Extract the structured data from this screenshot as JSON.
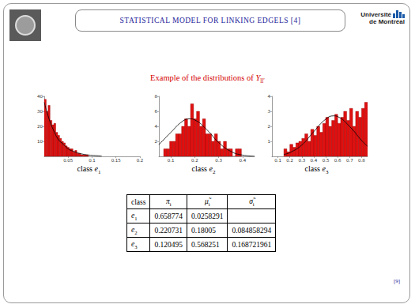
{
  "header": {
    "title": "STATISTICAL MODEL FOR LINKING EDGELS [4]",
    "institution": [
      "Université",
      "de Montréal"
    ],
    "page": "[9]"
  },
  "subtitle": {
    "text": "Example of the distributions of",
    "symbol": "Y",
    "sub": "ll′"
  },
  "chart_data": [
    {
      "type": "histogram",
      "title": {
        "text": "class",
        "symbol": "e",
        "sub": "1"
      },
      "bins": [
        0,
        0.004,
        0.008,
        0.012,
        0.016,
        0.02,
        0.024,
        0.028,
        0.032,
        0.036,
        0.04,
        0.044,
        0.048,
        0.052,
        0.056,
        0.06,
        0.064,
        0.068,
        0.072,
        0.076,
        0.08,
        0.084,
        0.088,
        0.092
      ],
      "values": [
        38,
        30,
        34,
        24,
        21,
        22,
        16,
        14,
        12,
        10,
        9,
        7,
        6,
        5,
        5,
        3,
        4,
        2,
        2,
        1,
        1,
        1,
        1
      ],
      "color": "#e01010",
      "curve": {
        "x": [
          0,
          0.01,
          0.02,
          0.03,
          0.04,
          0.05,
          0.06,
          0.08,
          0.1,
          0.12
        ],
        "y": [
          36,
          25,
          17,
          11,
          8,
          5,
          3.5,
          1.5,
          0.7,
          0.3
        ],
        "color": "#000000"
      },
      "xlim": [
        0,
        0.2
      ],
      "xticks": [
        0.05,
        0.1,
        0.15,
        0.2
      ],
      "ylim": [
        0,
        40
      ],
      "yticks": [
        10,
        20,
        30,
        40
      ],
      "grid": false
    },
    {
      "type": "histogram",
      "title": {
        "text": "class",
        "symbol": "e",
        "sub": "2"
      },
      "bins": [
        0.07,
        0.0825,
        0.095,
        0.1075,
        0.12,
        0.1325,
        0.145,
        0.1575,
        0.17,
        0.1825,
        0.195,
        0.2075,
        0.22,
        0.2325,
        0.245,
        0.2575,
        0.27,
        0.2825,
        0.295,
        0.3075,
        0.32,
        0.3325,
        0.345,
        0.3575,
        0.37,
        0.3825,
        0.395
      ],
      "values": [
        1,
        1,
        2,
        2,
        3,
        3,
        4,
        5,
        4,
        7,
        5,
        6,
        4,
        5,
        3,
        3,
        2,
        3,
        2,
        1,
        2,
        1,
        1,
        0,
        1,
        1
      ],
      "color": "#e01010",
      "curve": {
        "x": [
          0.05,
          0.1,
          0.15,
          0.18,
          0.2,
          0.25,
          0.3,
          0.35,
          0.4,
          0.45
        ],
        "y": [
          1.55,
          3.2,
          4.7,
          5,
          4.86,
          3.57,
          1.85,
          0.68,
          0.17,
          0.03
        ],
        "color": "#000000"
      },
      "xlim": [
        0.05,
        0.45
      ],
      "xticks": [
        0.1,
        0.2,
        0.3,
        0.4
      ],
      "ylim": [
        0,
        8
      ],
      "yticks": [
        2,
        4,
        6,
        8
      ],
      "grid": false
    },
    {
      "type": "histogram",
      "title": {
        "text": "class",
        "symbol": "e",
        "sub": "3"
      },
      "bins": [
        0.15,
        0.175,
        0.2,
        0.225,
        0.25,
        0.275,
        0.3,
        0.325,
        0.35,
        0.375,
        0.4,
        0.425,
        0.45,
        0.475,
        0.5,
        0.525,
        0.55,
        0.575,
        0.6,
        0.625,
        0.65,
        0.675,
        0.7,
        0.725,
        0.75,
        0.775,
        0.8,
        0.825,
        0.85
      ],
      "values": [
        0.5,
        0.3,
        0.8,
        0.6,
        0.9,
        1.0,
        1.2,
        1.5,
        1.0,
        1.8,
        1.4,
        2.0,
        1.6,
        2.2,
        2.6,
        2.0,
        2.4,
        2.8,
        2.2,
        2.6,
        3.0,
        2.4,
        3.2,
        2.0,
        3.0,
        2.6,
        3.2,
        3.6
      ],
      "color": "#e01010",
      "curve": {
        "x": [
          0.15,
          0.2,
          0.3,
          0.4,
          0.5,
          0.568,
          0.6,
          0.7,
          0.8,
          0.85
        ],
        "y": [
          0.13,
          0.25,
          0.76,
          1.65,
          2.48,
          2.7,
          2.65,
          1.99,
          1.06,
          0.67
        ],
        "color": "#000000"
      },
      "xlim": [
        0.05,
        0.85
      ],
      "xticks": [
        0.1,
        0.2,
        0.3,
        0.4,
        0.5,
        0.6,
        0.7,
        0.8
      ],
      "ylim": [
        0,
        4
      ],
      "yticks": [
        1,
        2,
        3,
        4
      ],
      "grid": false
    }
  ],
  "table": {
    "header": [
      "class",
      {
        "symbol": "π",
        "sub": "i"
      },
      {
        "symbol": "μ̃",
        "sub": "i"
      },
      {
        "symbol": "σ̃",
        "sub": "i"
      }
    ],
    "rows": [
      [
        {
          "symbol": "e",
          "sub": "1"
        },
        "0.658774",
        "0.0258291",
        null
      ],
      [
        {
          "symbol": "e",
          "sub": "2"
        },
        "0.220731",
        "0.18005",
        "0.084858294"
      ],
      [
        {
          "symbol": "e",
          "sub": "3"
        },
        "0.120495",
        "0.568251",
        "0.168721961"
      ]
    ]
  }
}
